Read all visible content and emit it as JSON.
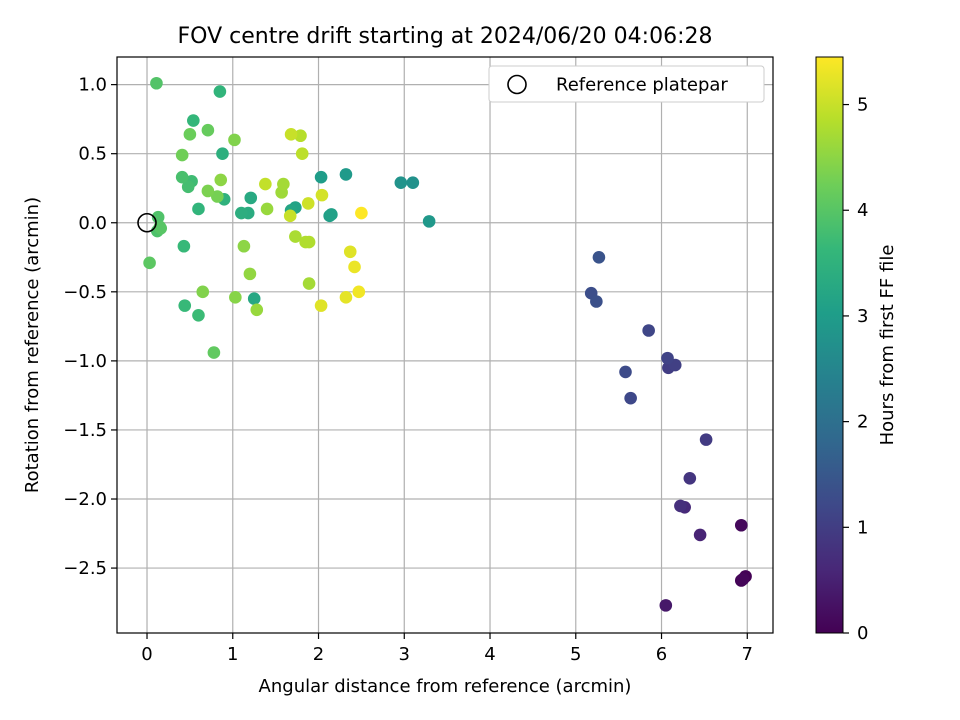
{
  "chart_data": {
    "type": "scatter",
    "title": "FOV centre drift starting at 2024/06/20 04:06:28",
    "xlabel": "Angular distance from reference (arcmin)",
    "ylabel": "Rotation from reference (arcmin)",
    "xlim": [
      -0.35,
      7.3
    ],
    "ylim": [
      -2.97,
      1.2
    ],
    "xticks": [
      0,
      1,
      2,
      3,
      4,
      5,
      6,
      7
    ],
    "yticks": [
      1.0,
      0.5,
      0.0,
      -0.5,
      -1.0,
      -1.5,
      -2.0,
      -2.5
    ],
    "xtick_labels": [
      "0",
      "1",
      "2",
      "3",
      "4",
      "5",
      "6",
      "7"
    ],
    "ytick_labels": [
      "1.0",
      "0.5",
      "0.0",
      "−0.5",
      "−1.0",
      "−1.5",
      "−2.0",
      "−2.5"
    ],
    "grid": true,
    "legend": {
      "placement": "upper right",
      "label": "Reference platepar",
      "marker": "open circle"
    },
    "reference_point": {
      "x": 0,
      "y": 0
    },
    "colorbar": {
      "label": "Hours from first FF file",
      "range": [
        0,
        5.45
      ],
      "ticks": [
        0,
        1,
        2,
        3,
        4,
        5
      ],
      "tick_labels": [
        "0",
        "1",
        "2",
        "3",
        "4",
        "5"
      ],
      "colormap": "viridis"
    },
    "colormap_stops": [
      "#440154",
      "#482878",
      "#3e4989",
      "#31688e",
      "#26828e",
      "#1f9e89",
      "#35b779",
      "#6ece58",
      "#b5de2b",
      "#fde725"
    ],
    "points": [
      {
        "x": 6.98,
        "y": -2.56,
        "c": 0.02
      },
      {
        "x": 6.93,
        "y": -2.59,
        "c": 0.05
      },
      {
        "x": 6.95,
        "y": -2.58,
        "c": 0.08
      },
      {
        "x": 6.93,
        "y": -2.19,
        "c": 0.12
      },
      {
        "x": 6.05,
        "y": -2.77,
        "c": 0.35
      },
      {
        "x": 6.45,
        "y": -2.26,
        "c": 0.55
      },
      {
        "x": 6.27,
        "y": -2.06,
        "c": 0.65
      },
      {
        "x": 6.22,
        "y": -2.05,
        "c": 0.75
      },
      {
        "x": 6.33,
        "y": -1.85,
        "c": 0.85
      },
      {
        "x": 6.52,
        "y": -1.57,
        "c": 0.95
      },
      {
        "x": 6.08,
        "y": -1.05,
        "c": 1.0
      },
      {
        "x": 6.16,
        "y": -1.03,
        "c": 1.05
      },
      {
        "x": 6.07,
        "y": -0.98,
        "c": 1.1
      },
      {
        "x": 5.85,
        "y": -0.78,
        "c": 1.15
      },
      {
        "x": 5.64,
        "y": -1.27,
        "c": 1.2
      },
      {
        "x": 5.58,
        "y": -1.08,
        "c": 1.25
      },
      {
        "x": 5.18,
        "y": -0.51,
        "c": 1.3
      },
      {
        "x": 5.24,
        "y": -0.57,
        "c": 1.35
      },
      {
        "x": 5.27,
        "y": -0.25,
        "c": 1.4
      },
      {
        "x": 3.29,
        "y": 0.01,
        "c": 2.9
      },
      {
        "x": 3.1,
        "y": 0.29,
        "c": 2.75
      },
      {
        "x": 2.96,
        "y": 0.29,
        "c": 2.8
      },
      {
        "x": 2.32,
        "y": 0.35,
        "c": 2.95
      },
      {
        "x": 2.03,
        "y": 0.33,
        "c": 3.0
      },
      {
        "x": 2.13,
        "y": 0.05,
        "c": 3.05
      },
      {
        "x": 2.15,
        "y": 0.06,
        "c": 3.1
      },
      {
        "x": 1.73,
        "y": 0.11,
        "c": 3.15
      },
      {
        "x": 1.68,
        "y": 0.09,
        "c": 3.2
      },
      {
        "x": 1.25,
        "y": -0.55,
        "c": 3.25
      },
      {
        "x": 1.21,
        "y": 0.18,
        "c": 3.3
      },
      {
        "x": 1.18,
        "y": 0.07,
        "c": 3.35
      },
      {
        "x": 1.1,
        "y": 0.07,
        "c": 3.4
      },
      {
        "x": 0.88,
        "y": 0.5,
        "c": 3.45
      },
      {
        "x": 0.9,
        "y": 0.17,
        "c": 3.5
      },
      {
        "x": 0.85,
        "y": 0.95,
        "c": 3.55
      },
      {
        "x": 0.6,
        "y": 0.1,
        "c": 3.55
      },
      {
        "x": 0.54,
        "y": 0.74,
        "c": 3.6
      },
      {
        "x": 0.43,
        "y": -0.17,
        "c": 3.65
      },
      {
        "x": 0.44,
        "y": -0.6,
        "c": 3.65
      },
      {
        "x": 0.6,
        "y": -0.67,
        "c": 3.7
      },
      {
        "x": 0.52,
        "y": 0.3,
        "c": 3.75
      },
      {
        "x": 0.48,
        "y": 0.26,
        "c": 3.8
      },
      {
        "x": 0.41,
        "y": 0.33,
        "c": 3.85
      },
      {
        "x": 0.12,
        "y": -0.06,
        "c": 3.9
      },
      {
        "x": 0.13,
        "y": 0.04,
        "c": 3.92
      },
      {
        "x": 0.11,
        "y": 1.01,
        "c": 3.95
      },
      {
        "x": 0.15,
        "y": -0.03,
        "c": 3.98
      },
      {
        "x": 0.16,
        "y": -0.04,
        "c": 4.0
      },
      {
        "x": 0.03,
        "y": -0.29,
        "c": 4.05
      },
      {
        "x": 0.78,
        "y": -0.94,
        "c": 4.1
      },
      {
        "x": 0.71,
        "y": 0.67,
        "c": 4.15
      },
      {
        "x": 0.5,
        "y": 0.64,
        "c": 4.2
      },
      {
        "x": 0.41,
        "y": 0.49,
        "c": 4.25
      },
      {
        "x": 0.82,
        "y": 0.19,
        "c": 4.3
      },
      {
        "x": 0.71,
        "y": 0.23,
        "c": 4.35
      },
      {
        "x": 0.65,
        "y": -0.5,
        "c": 4.4
      },
      {
        "x": 1.02,
        "y": 0.6,
        "c": 4.4
      },
      {
        "x": 1.03,
        "y": -0.54,
        "c": 4.45
      },
      {
        "x": 0.86,
        "y": 0.31,
        "c": 4.5
      },
      {
        "x": 1.13,
        "y": -0.17,
        "c": 4.5
      },
      {
        "x": 1.2,
        "y": -0.37,
        "c": 4.55
      },
      {
        "x": 1.28,
        "y": -0.63,
        "c": 4.6
      },
      {
        "x": 1.4,
        "y": 0.1,
        "c": 4.6
      },
      {
        "x": 1.57,
        "y": 0.22,
        "c": 4.65
      },
      {
        "x": 1.59,
        "y": 0.28,
        "c": 4.7
      },
      {
        "x": 1.89,
        "y": -0.44,
        "c": 4.7
      },
      {
        "x": 1.73,
        "y": -0.1,
        "c": 4.75
      },
      {
        "x": 1.85,
        "y": -0.14,
        "c": 4.8
      },
      {
        "x": 1.89,
        "y": -0.14,
        "c": 4.8
      },
      {
        "x": 1.79,
        "y": 0.63,
        "c": 4.85
      },
      {
        "x": 1.81,
        "y": 0.5,
        "c": 4.9
      },
      {
        "x": 1.38,
        "y": 0.28,
        "c": 4.95
      },
      {
        "x": 1.68,
        "y": 0.64,
        "c": 5.0
      },
      {
        "x": 1.67,
        "y": 0.05,
        "c": 5.0
      },
      {
        "x": 1.88,
        "y": 0.14,
        "c": 5.05
      },
      {
        "x": 2.04,
        "y": 0.2,
        "c": 5.1
      },
      {
        "x": 2.03,
        "y": -0.6,
        "c": 5.2
      },
      {
        "x": 2.37,
        "y": -0.21,
        "c": 5.2
      },
      {
        "x": 2.32,
        "y": -0.54,
        "c": 5.25
      },
      {
        "x": 2.42,
        "y": -0.32,
        "c": 5.3
      },
      {
        "x": 2.47,
        "y": -0.5,
        "c": 5.35
      },
      {
        "x": 2.5,
        "y": 0.07,
        "c": 5.45
      }
    ]
  }
}
